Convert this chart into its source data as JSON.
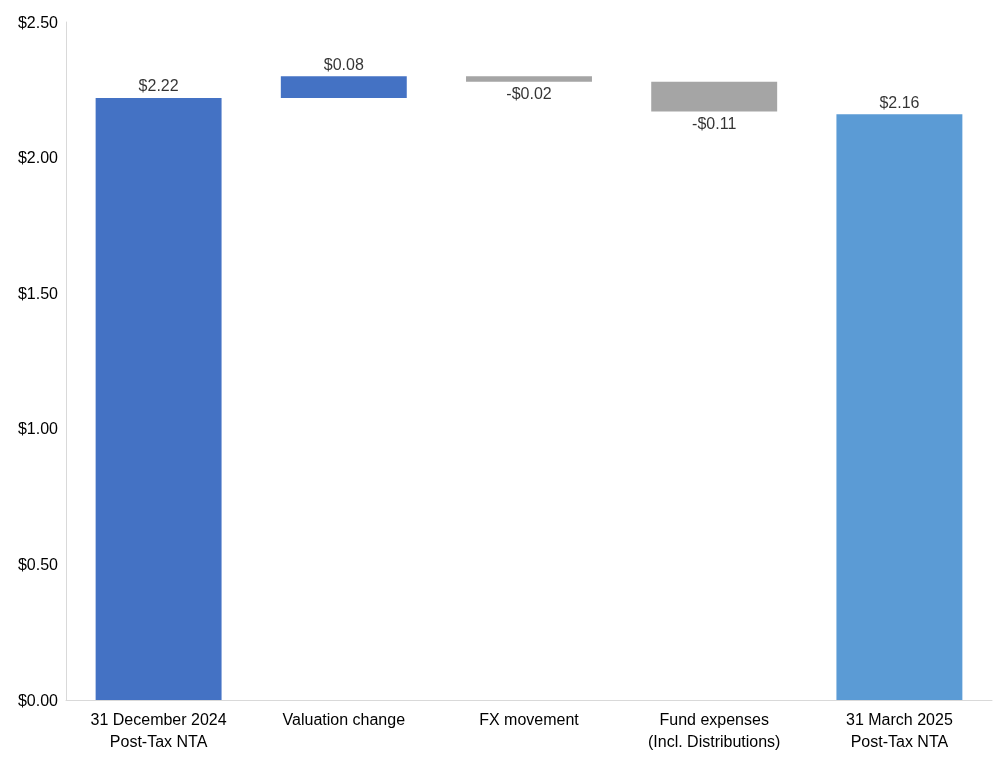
{
  "chart_data": {
    "type": "bar",
    "categories": [
      "31 December 2024\nPost-Tax NTA",
      "Valuation change",
      "FX movement",
      "Fund expenses\n(Incl. Distributions)",
      "31 March 2025\nPost-Tax NTA"
    ],
    "values": [
      2.22,
      0.08,
      -0.02,
      -0.11,
      2.16
    ],
    "base": [
      0,
      2.22,
      2.3,
      2.28,
      0
    ],
    "colors": [
      "#4472c4",
      "#4472c4",
      "#a5a5a5",
      "#a5a5a5",
      "#5b9bd5"
    ],
    "value_labels": [
      "$2.22",
      "$0.08",
      "-$0.02",
      "-$0.11",
      "$2.16"
    ],
    "ylim": [
      0,
      2.5
    ],
    "yticks": [
      {
        "value": 0,
        "label": "$0.00"
      },
      {
        "value": 0.5,
        "label": "$0.50"
      },
      {
        "value": 1,
        "label": "$1.00"
      },
      {
        "value": 1.5,
        "label": "$1.50"
      },
      {
        "value": 2,
        "label": "$2.00"
      },
      {
        "value": 2.5,
        "label": "$2.50"
      }
    ],
    "grid": false
  }
}
